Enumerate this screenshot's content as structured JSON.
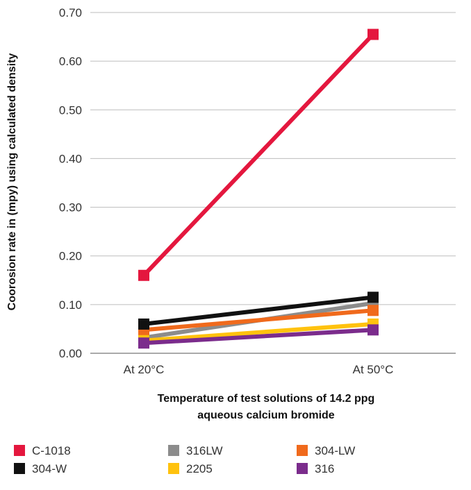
{
  "chart_data": {
    "type": "line",
    "categories": [
      "At 20°C",
      "At 50°C"
    ],
    "xlabel": [
      "Temperature of test solutions of 14.2 ppg",
      "aqueous calcium bromide"
    ],
    "ylabel": "Coorosion rate in (mpy) using calculated density",
    "ylim": [
      0,
      0.7
    ],
    "yticks": [
      "0.00",
      "0.10",
      "0.20",
      "0.30",
      "0.40",
      "0.50",
      "0.60",
      "0.70"
    ],
    "grid": true,
    "legend_position": "bottom",
    "series": [
      {
        "name": "C-1018",
        "color": "#e4173e",
        "values": [
          0.16,
          0.655
        ]
      },
      {
        "name": "316LW",
        "color": "#8c8c8c",
        "values": [
          0.032,
          0.103
        ]
      },
      {
        "name": "304-LW",
        "color": "#f06a1c",
        "values": [
          0.048,
          0.088
        ]
      },
      {
        "name": "304-W",
        "color": "#111111",
        "values": [
          0.06,
          0.115
        ]
      },
      {
        "name": "2205",
        "color": "#ffc20e",
        "values": [
          0.026,
          0.06
        ]
      },
      {
        "name": "316",
        "color": "#7b2c8c",
        "values": [
          0.021,
          0.048
        ]
      }
    ]
  }
}
